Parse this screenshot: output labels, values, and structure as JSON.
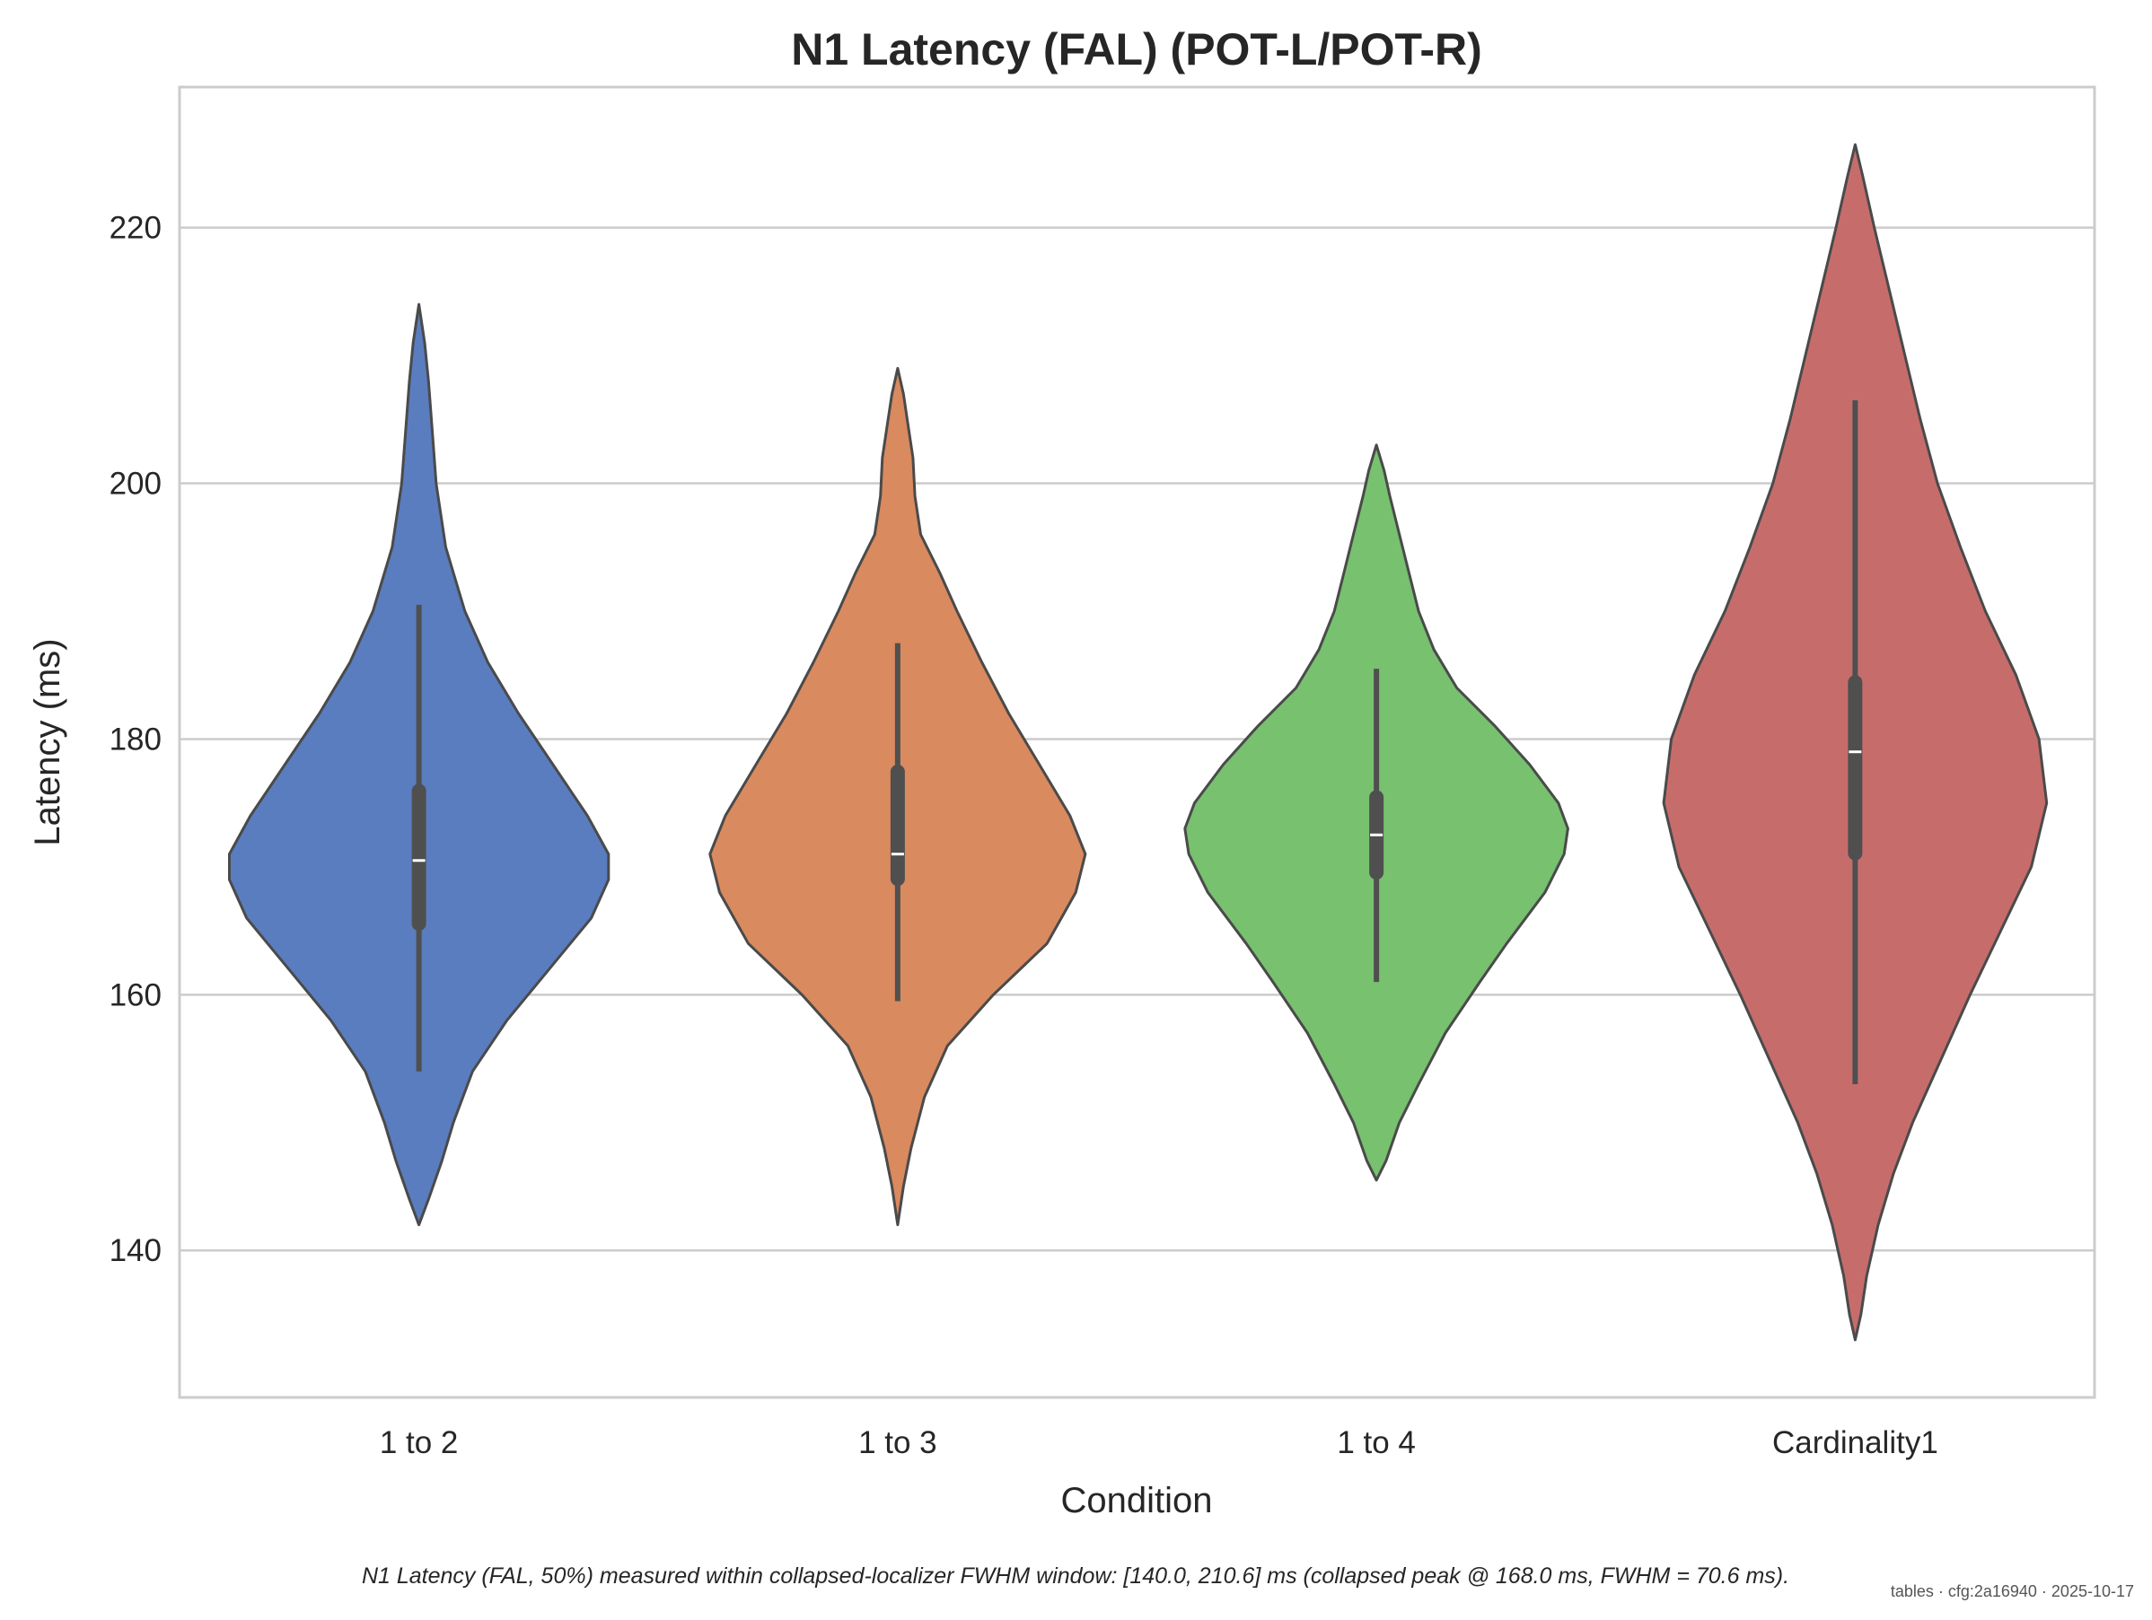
{
  "chart_data": {
    "type": "violin",
    "title": "N1 Latency (FAL) (POT-L/POT-R)",
    "xlabel": "Condition",
    "ylabel": "Latency (ms)",
    "ylim": [
      128.5,
      231.0
    ],
    "yticks": [
      140,
      160,
      180,
      200,
      220
    ],
    "grid": "horizontal",
    "categories": [
      "1 to 2",
      "1 to 3",
      "1 to 4",
      "Cardinality1"
    ],
    "series": [
      {
        "category": "1 to 2",
        "color": "#5a7dbf",
        "min": 142.0,
        "max": 214.0,
        "q1": 165.0,
        "median": 170.5,
        "q3": 176.5,
        "whisker_low": 154.0,
        "whisker_high": 190.5,
        "density": [
          [
            142,
            0.0
          ],
          [
            144,
            0.05
          ],
          [
            147,
            0.12
          ],
          [
            150,
            0.18
          ],
          [
            154,
            0.28
          ],
          [
            158,
            0.46
          ],
          [
            162,
            0.68
          ],
          [
            166,
            0.9
          ],
          [
            169,
            0.99
          ],
          [
            171,
            0.99
          ],
          [
            174,
            0.88
          ],
          [
            178,
            0.7
          ],
          [
            182,
            0.52
          ],
          [
            186,
            0.36
          ],
          [
            190,
            0.24
          ],
          [
            195,
            0.14
          ],
          [
            200,
            0.09
          ],
          [
            204,
            0.07
          ],
          [
            208,
            0.05
          ],
          [
            211,
            0.03
          ],
          [
            214,
            0.0
          ]
        ]
      },
      {
        "category": "1 to 3",
        "color": "#d98a5f",
        "min": 142.0,
        "max": 209.0,
        "q1": 168.5,
        "median": 171.0,
        "q3": 178.0,
        "whisker_low": 159.5,
        "whisker_high": 187.5,
        "density": [
          [
            142,
            0.0
          ],
          [
            145,
            0.03
          ],
          [
            148,
            0.07
          ],
          [
            152,
            0.14
          ],
          [
            156,
            0.26
          ],
          [
            160,
            0.5
          ],
          [
            164,
            0.78
          ],
          [
            168,
            0.93
          ],
          [
            171,
            0.98
          ],
          [
            174,
            0.9
          ],
          [
            178,
            0.74
          ],
          [
            182,
            0.58
          ],
          [
            186,
            0.44
          ],
          [
            190,
            0.31
          ],
          [
            193,
            0.22
          ],
          [
            196,
            0.12
          ],
          [
            199,
            0.09
          ],
          [
            202,
            0.08
          ],
          [
            205,
            0.05
          ],
          [
            207,
            0.03
          ],
          [
            209,
            0.0
          ]
        ]
      },
      {
        "category": "1 to 4",
        "color": "#77c16f",
        "min": 145.5,
        "max": 203.0,
        "q1": 169.0,
        "median": 172.5,
        "q3": 176.0,
        "whisker_low": 161.0,
        "whisker_high": 185.5,
        "density": [
          [
            145.5,
            0.0
          ],
          [
            147,
            0.05
          ],
          [
            150,
            0.12
          ],
          [
            153,
            0.22
          ],
          [
            157,
            0.36
          ],
          [
            161,
            0.54
          ],
          [
            164,
            0.68
          ],
          [
            168,
            0.88
          ],
          [
            171,
            0.98
          ],
          [
            173,
            1.0
          ],
          [
            175,
            0.95
          ],
          [
            178,
            0.8
          ],
          [
            181,
            0.62
          ],
          [
            184,
            0.42
          ],
          [
            187,
            0.3
          ],
          [
            190,
            0.22
          ],
          [
            193,
            0.17
          ],
          [
            196,
            0.12
          ],
          [
            199,
            0.07
          ],
          [
            201,
            0.04
          ],
          [
            203,
            0.0
          ]
        ]
      },
      {
        "category": "Cardinality1",
        "color": "#c66d6c",
        "min": 133.0,
        "max": 226.5,
        "q1": 170.5,
        "median": 179.0,
        "q3": 185.0,
        "whisker_low": 153.0,
        "whisker_high": 206.5,
        "density": [
          [
            133,
            0.0
          ],
          [
            135,
            0.03
          ],
          [
            138,
            0.06
          ],
          [
            142,
            0.12
          ],
          [
            146,
            0.2
          ],
          [
            150,
            0.3
          ],
          [
            155,
            0.45
          ],
          [
            160,
            0.6
          ],
          [
            165,
            0.76
          ],
          [
            170,
            0.92
          ],
          [
            175,
            1.0
          ],
          [
            180,
            0.96
          ],
          [
            185,
            0.84
          ],
          [
            190,
            0.68
          ],
          [
            195,
            0.55
          ],
          [
            200,
            0.43
          ],
          [
            205,
            0.34
          ],
          [
            210,
            0.26
          ],
          [
            215,
            0.18
          ],
          [
            220,
            0.1
          ],
          [
            224,
            0.04
          ],
          [
            226.5,
            0.0
          ]
        ]
      }
    ],
    "caption": "N1 Latency (FAL, 50%) measured within collapsed-localizer FWHM window: [140.0, 210.6] ms (collapsed peak @ 168.0 ms, FWHM = 70.6 ms).",
    "stamp": "tables · cfg:2a16940 · 2025-10-17"
  }
}
